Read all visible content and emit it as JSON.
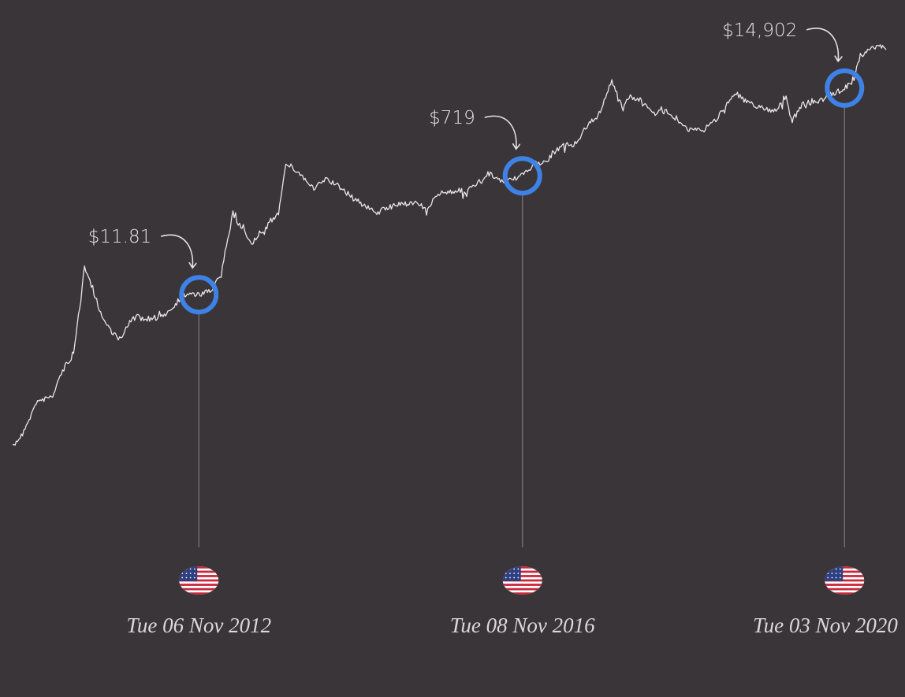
{
  "chart_data": {
    "type": "line",
    "title": "",
    "xlabel": "",
    "ylabel": "",
    "y_scale": "log",
    "grid": false,
    "legend": "none",
    "x_range": [
      "2010-07-18",
      "2021-05-10"
    ],
    "y_range": [
      0.05,
      70000
    ],
    "line_color": "#e8e6e8",
    "marker_color": "#3f82e6",
    "series": [
      {
        "x": [
          "2010-07-18",
          "2010-09-01",
          "2010-11-08",
          "2011-01-15",
          "2011-03-01",
          "2011-04-20",
          "2011-06-08",
          "2011-07-15",
          "2011-09-01",
          "2011-10-20",
          "2011-11-20",
          "2012-01-15",
          "2012-03-01",
          "2012-05-01",
          "2012-07-01",
          "2012-08-20",
          "2012-09-15",
          "2012-11-06",
          "2013-01-01",
          "2013-02-15",
          "2013-04-09",
          "2013-05-15",
          "2013-07-05",
          "2013-09-15",
          "2013-11-01",
          "2013-12-04",
          "2014-02-01",
          "2014-04-10",
          "2014-06-01",
          "2014-08-01",
          "2014-10-05",
          "2015-01-14",
          "2015-04-01",
          "2015-07-01",
          "2015-09-01",
          "2015-11-04",
          "2016-01-15",
          "2016-03-01",
          "2016-06-16",
          "2016-08-01",
          "2016-11-08",
          "2017-01-04",
          "2017-03-01",
          "2017-05-01",
          "2017-07-15",
          "2017-09-01",
          "2017-10-15",
          "2017-12-17",
          "2018-02-06",
          "2018-03-05",
          "2018-05-05",
          "2018-07-01",
          "2018-09-01",
          "2018-11-25",
          "2019-02-01",
          "2019-04-01",
          "2019-06-26",
          "2019-08-01",
          "2019-10-25",
          "2019-12-18",
          "2020-02-13",
          "2020-03-12",
          "2020-05-01",
          "2020-07-01",
          "2020-09-01",
          "2020-11-03",
          "2020-12-16",
          "2021-01-08",
          "2021-02-21",
          "2021-04-14",
          "2021-05-10"
        ],
        "y": [
          0.06,
          0.1,
          0.3,
          0.35,
          0.9,
          1.5,
          30,
          14,
          5,
          3,
          2.5,
          6,
          5,
          5,
          7,
          11,
          12,
          11.81,
          13.5,
          25,
          200,
          120,
          70,
          130,
          200,
          1150,
          800,
          450,
          650,
          500,
          330,
          200,
          250,
          290,
          230,
          400,
          430,
          420,
          750,
          580,
          719,
          1100,
          1200,
          2000,
          2200,
          4500,
          5500,
          19500,
          6900,
          11400,
          9500,
          6300,
          6600,
          3600,
          3400,
          5000,
          13000,
          10000,
          7500,
          6700,
          10300,
          4900,
          8800,
          9100,
          11900,
          14902,
          20000,
          40000,
          57000,
          63000,
          56000
        ]
      }
    ],
    "annotations": [
      {
        "date": "2012-11-06",
        "price": 11.81,
        "price_label": "$11.81",
        "date_label": "Tue 06 Nov 2012",
        "icon": "us-flag-icon"
      },
      {
        "date": "2016-11-08",
        "price": 719,
        "price_label": "$719",
        "date_label": "Tue 08 Nov 2016",
        "icon": "us-flag-icon"
      },
      {
        "date": "2020-11-03",
        "price": 14902,
        "price_label": "$14,902",
        "date_label": "Tue 03 Nov 2020",
        "icon": "us-flag-icon"
      }
    ]
  }
}
